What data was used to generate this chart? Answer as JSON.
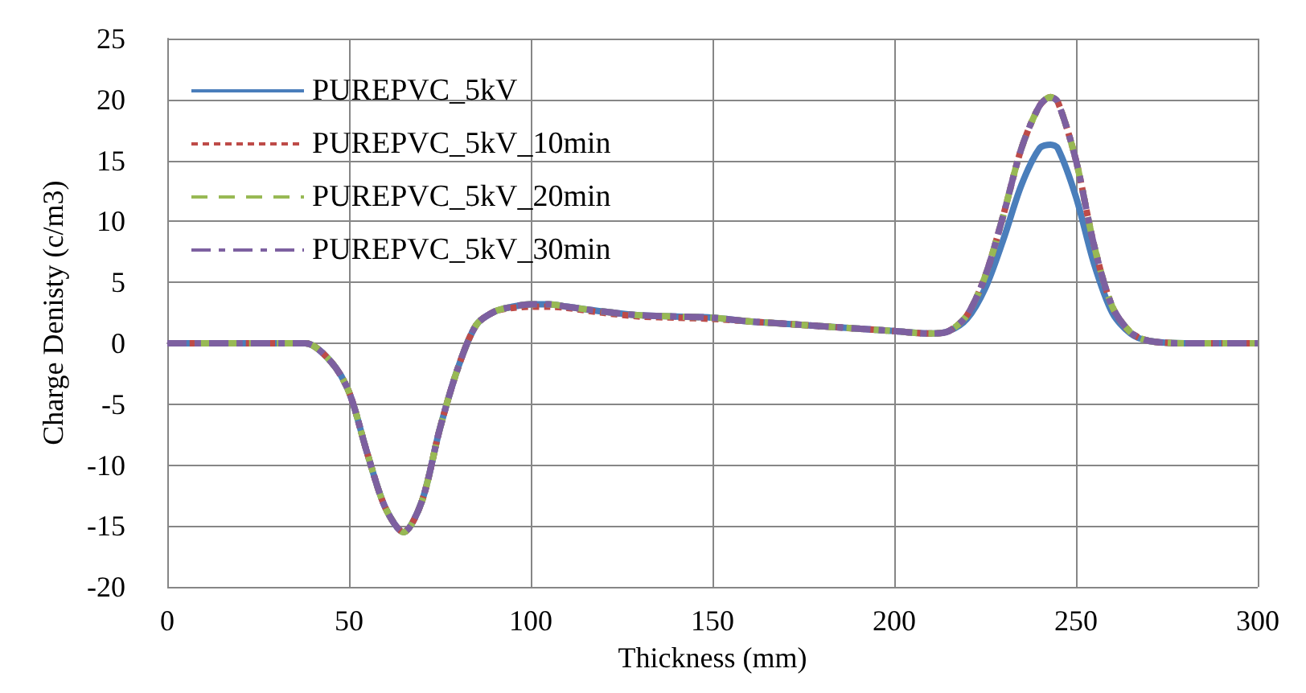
{
  "chart_data": {
    "type": "line",
    "xlabel": "Thickness (mm)",
    "ylabel": "Charge Denisty (c/m3)",
    "x": [
      0,
      20,
      38,
      45,
      50,
      55,
      60,
      65,
      70,
      75,
      80,
      85,
      90,
      95,
      100,
      105,
      110,
      120,
      130,
      140,
      150,
      160,
      170,
      180,
      190,
      200,
      210,
      215,
      220,
      225,
      230,
      235,
      240,
      243,
      245,
      250,
      255,
      260,
      265,
      270,
      280,
      300
    ],
    "series": [
      {
        "name": "PUREPVC_5kV",
        "color": "#4a7ebb",
        "line_style": "solid",
        "values": [
          0,
          0,
          0,
          -1.5,
          -4,
          -9,
          -13.5,
          -15.5,
          -13,
          -7,
          -2,
          1.5,
          2.6,
          3,
          3.2,
          3.2,
          3,
          2.6,
          2.3,
          2.2,
          2.1,
          1.8,
          1.6,
          1.4,
          1.2,
          1,
          0.8,
          1,
          2,
          4.5,
          8.5,
          13,
          16,
          16.3,
          16,
          12,
          6.5,
          2.5,
          0.8,
          0.2,
          0,
          0
        ]
      },
      {
        "name": "PUREPVC_5kV_10min",
        "color": "#be4b48",
        "line_style": "dotted",
        "values": [
          0,
          0,
          0,
          -1.5,
          -4,
          -9,
          -13.5,
          -15.5,
          -13,
          -7,
          -2,
          1.5,
          2.6,
          2.9,
          3,
          3,
          2.9,
          2.5,
          2.2,
          2.1,
          2,
          1.8,
          1.6,
          1.4,
          1.2,
          1,
          0.8,
          1,
          2.3,
          5.5,
          10.5,
          16,
          19.5,
          20.2,
          19.8,
          15,
          8,
          3,
          0.9,
          0.2,
          0,
          0
        ]
      },
      {
        "name": "PUREPVC_5kV_20min",
        "color": "#98b954",
        "line_style": "dashed",
        "values": [
          0,
          0,
          0,
          -1.5,
          -4,
          -9,
          -13.5,
          -15.5,
          -13,
          -7,
          -2,
          1.5,
          2.6,
          3,
          3.2,
          3.2,
          3,
          2.6,
          2.3,
          2.2,
          2.1,
          1.8,
          1.6,
          1.4,
          1.2,
          1,
          0.8,
          1,
          2.3,
          5.5,
          10.5,
          16,
          19.5,
          20.2,
          19.8,
          15,
          8,
          3,
          0.9,
          0.2,
          0,
          0
        ]
      },
      {
        "name": "PUREPVC_5kV_30min",
        "color": "#7d60a0",
        "line_style": "dashdot",
        "values": [
          0,
          0,
          0,
          -1.5,
          -4,
          -9,
          -13.5,
          -15.5,
          -13,
          -7,
          -2,
          1.5,
          2.6,
          3,
          3.2,
          3.2,
          3,
          2.6,
          2.3,
          2.2,
          2.1,
          1.8,
          1.6,
          1.4,
          1.2,
          1,
          0.8,
          1,
          2.3,
          5.5,
          10.5,
          16,
          19.5,
          20.2,
          19.8,
          15,
          8,
          3,
          0.9,
          0.2,
          0,
          0
        ]
      }
    ],
    "xlim": [
      0,
      300
    ],
    "xticks": [
      0,
      50,
      100,
      150,
      200,
      250,
      300
    ],
    "ylim": [
      -20,
      25
    ],
    "yticks": [
      -20,
      -15,
      -10,
      -5,
      0,
      5,
      10,
      15,
      20,
      25
    ],
    "grid": true,
    "legend": "top left",
    "marker": "none"
  }
}
